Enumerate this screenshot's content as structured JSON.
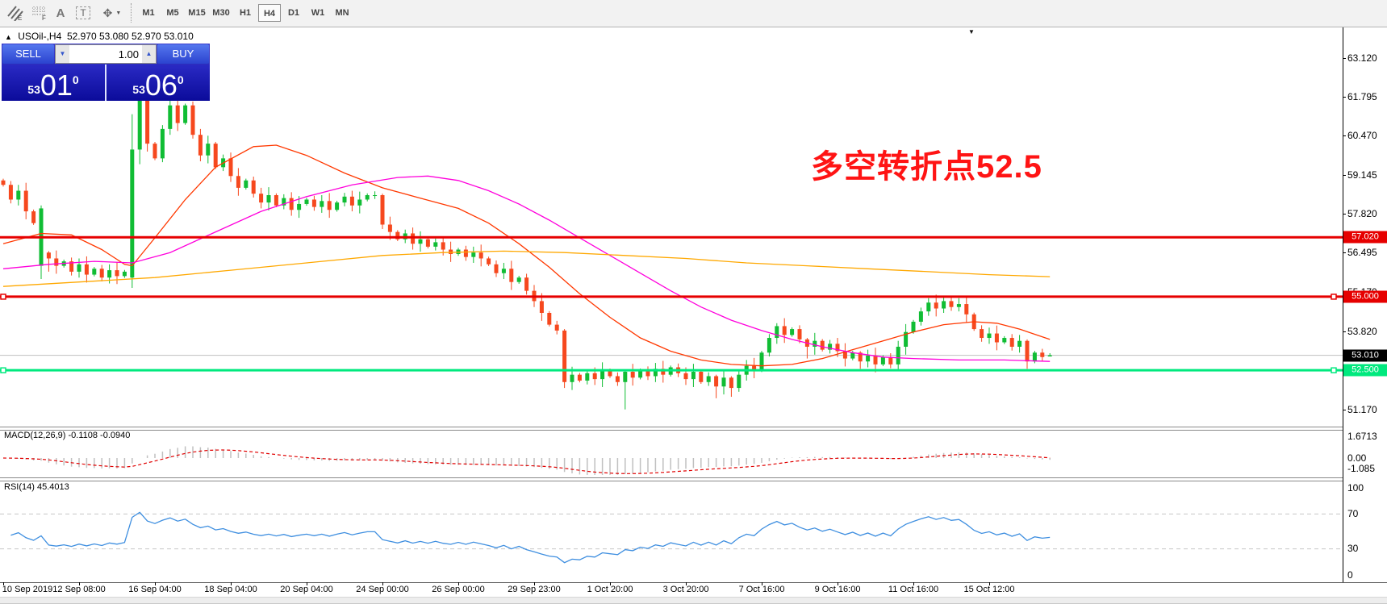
{
  "toolbar": {
    "tools": [
      {
        "name": "hatch-channel-tool",
        "glyph": "E"
      },
      {
        "name": "fibo-grid-tool",
        "glyph": "F"
      },
      {
        "name": "text-label-tool",
        "glyph": "A"
      },
      {
        "name": "text-box-tool",
        "glyph": "T"
      },
      {
        "name": "arrows-tool",
        "glyph": "✥"
      }
    ],
    "timeframes": [
      "M1",
      "M5",
      "M15",
      "M30",
      "H1",
      "H4",
      "D1",
      "W1",
      "MN"
    ],
    "active_timeframe": "H4"
  },
  "symbol_line": {
    "collapse_icon": "▲",
    "symbol": "USOil-,H4",
    "quote": "52.970 53.080 52.970 53.010"
  },
  "trade_panel": {
    "sell_label": "SELL",
    "buy_label": "BUY",
    "volume": "1.00",
    "down_arrow": "▼",
    "up_arrow": "▲",
    "sell_price_small": "53",
    "sell_price_big": "01",
    "sell_price_sup": "0",
    "buy_price_small": "53",
    "buy_price_big": "06",
    "buy_price_sup": "0"
  },
  "annotation": {
    "text": "多空转折点52.5",
    "color": "#ff1414"
  },
  "indicators": {
    "macd_label": "MACD(12,26,9)",
    "macd_values": "-0.1108 -0.0940",
    "rsi_label": "RSI(14)",
    "rsi_value": "45.4013"
  },
  "chart_data": {
    "type": "candlestick",
    "symbol": "USOil-",
    "timeframe": "H4",
    "up_color": "#10bd34",
    "down_color": "#f6481e",
    "price_axis_ticks": [
      [
        "63.120",
        63.12
      ],
      [
        "61.795",
        61.795
      ],
      [
        "60.470",
        60.47
      ],
      [
        "59.145",
        59.145
      ],
      [
        "57.820",
        57.82
      ],
      [
        "56.495",
        56.495
      ],
      [
        "55.170",
        55.17
      ],
      [
        "53.820",
        53.82
      ],
      [
        "51.170",
        51.17
      ]
    ],
    "price_badges": [
      {
        "label": "57.020",
        "price": 57.02,
        "bg": "#e60000"
      },
      {
        "label": "55.000",
        "price": 55.0,
        "bg": "#e60000"
      },
      {
        "label": "53.010",
        "price": 53.01,
        "bg": "#000000"
      },
      {
        "label": "52.500",
        "price": 52.5,
        "bg": "#00e97e"
      }
    ],
    "hlines": [
      {
        "price": 57.02,
        "color": "#e60000",
        "w": 3,
        "handles": false
      },
      {
        "price": 55.0,
        "color": "#e60000",
        "w": 3,
        "handles": true
      },
      {
        "price": 52.5,
        "color": "#00e97e",
        "w": 3,
        "handles": true
      }
    ],
    "current_price_line": {
      "price": 53.01,
      "color": "#c0c0c0"
    },
    "time_labels": [
      "10 Sep 2019",
      "12 Sep 08:00",
      "16 Sep 04:00",
      "18 Sep 04:00",
      "20 Sep 04:00",
      "24 Sep 00:00",
      "26 Sep 00:00",
      "29 Sep 23:00",
      "1 Oct 20:00",
      "3 Oct 20:00",
      "7 Oct 16:00",
      "9 Oct 16:00",
      "11 Oct 16:00",
      "15 Oct 12:00"
    ],
    "closes": [
      58.8,
      58.3,
      58.6,
      57.9,
      57.5,
      58.0,
      56.3,
      56.05,
      56.2,
      55.85,
      56.1,
      55.75,
      55.95,
      55.65,
      55.9,
      55.7,
      55.85,
      60.0,
      61.7,
      60.2,
      59.7,
      60.7,
      61.5,
      60.9,
      61.5,
      60.5,
      59.8,
      60.2,
      59.4,
      59.7,
      59.1,
      58.7,
      58.95,
      58.5,
      58.2,
      58.45,
      58.1,
      58.35,
      57.95,
      58.15,
      58.3,
      58.05,
      58.25,
      57.95,
      58.2,
      58.4,
      58.1,
      58.3,
      58.45,
      58.45,
      57.45,
      57.2,
      56.95,
      57.15,
      56.8,
      56.95,
      56.7,
      56.85,
      56.6,
      56.45,
      56.6,
      56.35,
      56.5,
      56.3,
      56.1,
      55.8,
      55.95,
      55.5,
      55.65,
      55.2,
      54.85,
      54.45,
      54.05,
      53.85,
      52.1,
      52.35,
      52.15,
      52.4,
      52.2,
      52.5,
      52.3,
      52.1,
      52.45,
      52.25,
      52.5,
      52.3,
      52.55,
      52.35,
      52.6,
      52.4,
      52.2,
      52.45,
      52.1,
      52.3,
      51.95,
      52.25,
      51.9,
      52.35,
      52.65,
      52.5,
      53.1,
      53.6,
      54.0,
      53.7,
      53.9,
      53.55,
      53.3,
      53.5,
      53.2,
      53.4,
      53.15,
      52.9,
      53.1,
      52.8,
      53.0,
      52.7,
      52.95,
      52.7,
      53.3,
      53.8,
      54.15,
      54.5,
      54.8,
      54.6,
      54.85,
      54.65,
      54.75,
      54.4,
      53.9,
      53.6,
      53.75,
      53.45,
      53.6,
      53.3,
      53.5,
      52.8,
      53.1,
      52.95,
      53.01
    ],
    "ohlc_overrides": {
      "5": [
        56.05,
        58.1,
        55.6,
        58.0
      ],
      "6": [
        56.5,
        56.55,
        55.85,
        56.3
      ],
      "17": [
        55.65,
        61.2,
        55.3,
        60.0
      ],
      "18": [
        60.0,
        63.1,
        59.5,
        61.7
      ],
      "50": [
        58.45,
        58.5,
        57.3,
        57.45
      ],
      "74": [
        53.85,
        53.9,
        51.9,
        52.1
      ],
      "82": [
        52.1,
        52.5,
        51.17,
        52.45
      ],
      "94": [
        52.3,
        52.35,
        51.55,
        51.95
      ],
      "96": [
        52.25,
        52.3,
        51.6,
        51.9
      ],
      "102": [
        53.6,
        54.1,
        53.4,
        54.0
      ],
      "106": [
        53.55,
        53.6,
        52.9,
        53.3
      ],
      "113": [
        53.1,
        53.15,
        52.55,
        52.8
      ],
      "122": [
        54.5,
        54.95,
        54.35,
        54.8
      ],
      "124": [
        54.6,
        55.0,
        54.45,
        54.85
      ],
      "126": [
        54.65,
        54.95,
        54.5,
        54.75
      ],
      "135": [
        53.5,
        53.55,
        52.55,
        52.8
      ],
      "138": [
        52.97,
        53.08,
        52.97,
        53.01
      ]
    },
    "ma_lines": [
      {
        "name": "ma-fast-red",
        "color": "#ff3800",
        "points": [
          [
            0,
            56.8
          ],
          [
            5,
            57.15
          ],
          [
            9,
            57.1
          ],
          [
            13,
            56.6
          ],
          [
            16,
            56.1
          ],
          [
            17,
            56.05
          ],
          [
            20,
            57.0
          ],
          [
            24,
            58.3
          ],
          [
            28,
            59.4
          ],
          [
            33,
            60.1
          ],
          [
            36,
            60.15
          ],
          [
            40,
            59.8
          ],
          [
            45,
            59.2
          ],
          [
            50,
            58.7
          ],
          [
            55,
            58.35
          ],
          [
            60,
            58.0
          ],
          [
            64,
            57.5
          ],
          [
            68,
            56.8
          ],
          [
            72,
            56.0
          ],
          [
            76,
            55.1
          ],
          [
            80,
            54.3
          ],
          [
            84,
            53.6
          ],
          [
            88,
            53.15
          ],
          [
            92,
            52.85
          ],
          [
            96,
            52.7
          ],
          [
            100,
            52.65
          ],
          [
            104,
            52.7
          ],
          [
            108,
            52.9
          ],
          [
            112,
            53.2
          ],
          [
            116,
            53.5
          ],
          [
            120,
            53.8
          ],
          [
            124,
            54.05
          ],
          [
            128,
            54.15
          ],
          [
            131,
            54.1
          ],
          [
            134,
            53.9
          ],
          [
            138,
            53.55
          ]
        ]
      },
      {
        "name": "ma-mid-magenta",
        "color": "#ff00dc",
        "points": [
          [
            0,
            55.95
          ],
          [
            6,
            56.1
          ],
          [
            12,
            56.2
          ],
          [
            17,
            56.15
          ],
          [
            22,
            56.5
          ],
          [
            28,
            57.2
          ],
          [
            34,
            57.9
          ],
          [
            40,
            58.4
          ],
          [
            46,
            58.8
          ],
          [
            52,
            59.05
          ],
          [
            56,
            59.1
          ],
          [
            60,
            58.95
          ],
          [
            64,
            58.6
          ],
          [
            68,
            58.15
          ],
          [
            72,
            57.6
          ],
          [
            76,
            57.0
          ],
          [
            80,
            56.4
          ],
          [
            84,
            55.8
          ],
          [
            88,
            55.2
          ],
          [
            92,
            54.65
          ],
          [
            96,
            54.2
          ],
          [
            100,
            53.85
          ],
          [
            104,
            53.55
          ],
          [
            108,
            53.3
          ],
          [
            112,
            53.1
          ],
          [
            116,
            52.95
          ],
          [
            120,
            52.9
          ],
          [
            126,
            52.85
          ],
          [
            132,
            52.85
          ],
          [
            138,
            52.8
          ]
        ]
      },
      {
        "name": "ma-slow-orange",
        "color": "#ffa800",
        "points": [
          [
            0,
            55.35
          ],
          [
            10,
            55.5
          ],
          [
            20,
            55.65
          ],
          [
            30,
            55.9
          ],
          [
            40,
            56.15
          ],
          [
            50,
            56.4
          ],
          [
            58,
            56.5
          ],
          [
            66,
            56.55
          ],
          [
            74,
            56.5
          ],
          [
            82,
            56.4
          ],
          [
            90,
            56.3
          ],
          [
            98,
            56.15
          ],
          [
            106,
            56.05
          ],
          [
            114,
            55.95
          ],
          [
            122,
            55.85
          ],
          [
            130,
            55.75
          ],
          [
            138,
            55.68
          ]
        ]
      }
    ],
    "macd_axis": [
      [
        "1.6713",
        541
      ],
      [
        "0.00",
        568
      ],
      [
        "-1.085",
        581
      ]
    ],
    "macd_colors": {
      "histogram": "#c0c0c0",
      "signal": "#e00000"
    },
    "rsi_axis": [
      [
        "100",
        605
      ],
      [
        "70",
        637
      ],
      [
        "30",
        680
      ],
      [
        "0",
        713
      ]
    ],
    "rsi_levels": [
      70,
      30
    ],
    "rsi_color": "#3f8fe0"
  }
}
